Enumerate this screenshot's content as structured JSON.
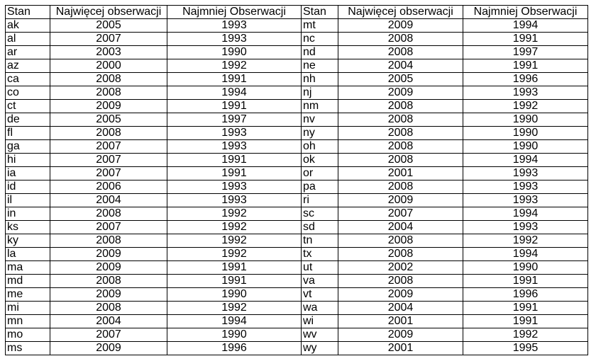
{
  "headers": [
    "Stan",
    "Najwięcej obserwacji",
    "Najmniej Obserwacji",
    "Stan",
    "Najwięcej obserwacji",
    "Najmniej Obserwacji"
  ],
  "rows": [
    [
      "ak",
      "2005",
      "1993",
      "mt",
      "2009",
      "1994"
    ],
    [
      "al",
      "2007",
      "1993",
      "nc",
      "2008",
      "1991"
    ],
    [
      "ar",
      "2003",
      "1990",
      "nd",
      "2008",
      "1997"
    ],
    [
      "az",
      "2000",
      "1992",
      "ne",
      "2004",
      "1991"
    ],
    [
      "ca",
      "2008",
      "1991",
      "nh",
      "2005",
      "1996"
    ],
    [
      "co",
      "2008",
      "1994",
      "nj",
      "2009",
      "1993"
    ],
    [
      "ct",
      "2009",
      "1991",
      "nm",
      "2008",
      "1992"
    ],
    [
      "de",
      "2005",
      "1997",
      "nv",
      "2008",
      "1990"
    ],
    [
      "fl",
      "2008",
      "1993",
      "ny",
      "2008",
      "1990"
    ],
    [
      "ga",
      "2007",
      "1993",
      "oh",
      "2008",
      "1990"
    ],
    [
      "hi",
      "2007",
      "1991",
      "ok",
      "2008",
      "1994"
    ],
    [
      "ia",
      "2007",
      "1991",
      "or",
      "2001",
      "1993"
    ],
    [
      "id",
      "2006",
      "1993",
      "pa",
      "2008",
      "1993"
    ],
    [
      "il",
      "2004",
      "1993",
      "ri",
      "2009",
      "1993"
    ],
    [
      "in",
      "2008",
      "1992",
      "sc",
      "2007",
      "1994"
    ],
    [
      "ks",
      "2007",
      "1992",
      "sd",
      "2004",
      "1993"
    ],
    [
      "ky",
      "2008",
      "1992",
      "tn",
      "2008",
      "1992"
    ],
    [
      "la",
      "2009",
      "1992",
      "tx",
      "2008",
      "1994"
    ],
    [
      "ma",
      "2009",
      "1991",
      "ut",
      "2002",
      "1990"
    ],
    [
      "md",
      "2008",
      "1991",
      "va",
      "2008",
      "1991"
    ],
    [
      "me",
      "2009",
      "1990",
      "vt",
      "2009",
      "1996"
    ],
    [
      "mi",
      "2008",
      "1992",
      "wa",
      "2004",
      "1991"
    ],
    [
      "mn",
      "2004",
      "1994",
      "wi",
      "2001",
      "1991"
    ],
    [
      "mo",
      "2007",
      "1990",
      "wv",
      "2009",
      "1992"
    ],
    [
      "ms",
      "2009",
      "1996",
      "wy",
      "2001",
      "1995"
    ]
  ]
}
